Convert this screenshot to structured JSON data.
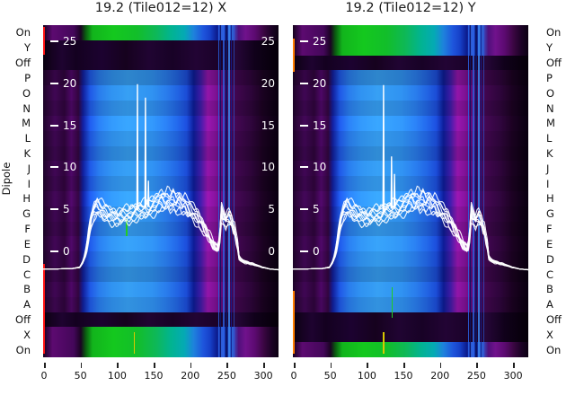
{
  "figure": {
    "kind": "dual-panel spectrogram with overlaid bandpass line plots",
    "ylabel": "Dipole"
  },
  "palette": {
    "background": "#ffffff",
    "curve": "#ffffff",
    "text": "#111111",
    "tick_text_inside": "#ffffff",
    "green_active": "#14c81e",
    "cyan": "#02b4b4",
    "blue": "#1e55dc",
    "light_blue": "#2e8ce6",
    "magenta": "#8c14a0",
    "purple": "#5c0a70",
    "dark_purple": "#2c0538",
    "near_black": "#08000e",
    "red_edge": "#ff1414",
    "orange_edge": "#ff7d00",
    "yellow_line": "#d8c800",
    "green_line": "#22cc22"
  },
  "chart_data": {
    "type": "heatmap",
    "subtype": "spectrogram rows per dipole with white bandpass curves overlay",
    "row_axis_label": "Dipole",
    "rows": [
      "On",
      "Y",
      "Off",
      "P",
      "O",
      "N",
      "M",
      "L",
      "K",
      "J",
      "I",
      "H",
      "G",
      "F",
      "E",
      "D",
      "C",
      "B",
      "A",
      "Off",
      "X",
      "On"
    ],
    "x_axis": {
      "tick_labels": [
        "0",
        "50",
        "100",
        "150",
        "200",
        "250",
        "300"
      ],
      "tick_values": [
        0,
        50,
        100,
        150,
        200,
        250,
        300
      ],
      "range": [
        0,
        322
      ]
    },
    "y_value_axis": {
      "tick_labels": [
        "25",
        "20",
        "15",
        "10",
        "5",
        "0"
      ],
      "tick_values": [
        25,
        20,
        15,
        10,
        5,
        0
      ],
      "range": [
        -12.7,
        26.9
      ]
    },
    "panels": [
      {
        "title": "19.2 (Tile012=12) X",
        "polarization": "X",
        "row_states": [
          "on",
          "off",
          "off",
          "dipole",
          "dipole",
          "dipole",
          "dipole",
          "dipole",
          "dipole",
          "dipole",
          "dipole",
          "dipole",
          "dipole",
          "dipole",
          "dipole",
          "dipole",
          "dipole",
          "dipole",
          "dipole",
          "off",
          "on",
          "on"
        ],
        "ytick_labels_right": true,
        "spikes": [
          [
            129,
            19.9
          ],
          [
            140,
            18.3
          ],
          [
            144,
            8.4
          ]
        ],
        "marks": [
          {
            "f": 114,
            "w": 1.5,
            "color_key": "green_line",
            "top": 0.585,
            "h": 0.05
          },
          {
            "f": 125,
            "w": 1.5,
            "color_key": "yellow_line",
            "top": 0.925,
            "h": 0.065
          },
          {
            "f": 1,
            "w": 2,
            "color_key": "red_edge",
            "top": 0.005,
            "h": 0.085
          },
          {
            "f": 1,
            "w": 2,
            "color_key": "red_edge",
            "top": 0.72,
            "h": 0.27
          }
        ]
      },
      {
        "title": "19.2 (Tile012=12) Y",
        "polarization": "Y",
        "row_states": [
          "on",
          "on",
          "off",
          "dipole",
          "dipole",
          "dipole",
          "dipole",
          "dipole",
          "dipole",
          "dipole",
          "dipole",
          "dipole",
          "dipole",
          "dipole",
          "dipole",
          "dipole",
          "dipole",
          "dipole",
          "dipole",
          "off",
          "off",
          "on"
        ],
        "ytick_labels_right": false,
        "spikes": [
          [
            124,
            19.8
          ],
          [
            135,
            11.3
          ],
          [
            139,
            9.2
          ]
        ],
        "marks": [
          {
            "f": 136,
            "w": 1.5,
            "color_key": "green_line",
            "top": 0.79,
            "h": 0.09
          },
          {
            "f": 124,
            "w": 1.5,
            "color_key": "yellow_line",
            "top": 0.925,
            "h": 0.065
          },
          {
            "f": 1,
            "w": 2,
            "color_key": "orange_edge",
            "top": 0.04,
            "h": 0.1
          },
          {
            "f": 1,
            "w": 2,
            "color_key": "orange_edge",
            "top": 0.8,
            "h": 0.19
          }
        ]
      }
    ],
    "shared_vertical_stripes": [
      {
        "f": 240,
        "w": 1.5,
        "color": "#2a64e8",
        "o": 0.85
      },
      {
        "f": 243,
        "w": 1.0,
        "color": "#0a1464",
        "o": 0.9
      },
      {
        "f": 247,
        "w": 2.0,
        "color": "#2a64e8",
        "o": 0.8
      },
      {
        "f": 251,
        "w": 1.5,
        "color": "#0a1464",
        "o": 0.9
      },
      {
        "f": 255,
        "w": 2.0,
        "color": "#3c88ee",
        "o": 0.85
      },
      {
        "f": 258,
        "w": 1.0,
        "color": "#141e8c",
        "o": 0.9
      },
      {
        "f": 261,
        "w": 1.5,
        "color": "#2a64e8",
        "o": 0.6
      }
    ],
    "base_curve": [
      [
        0,
        -2.1
      ],
      [
        20,
        -2.1
      ],
      [
        40,
        -2.05
      ],
      [
        50,
        -1.9
      ],
      [
        55,
        -1.2
      ],
      [
        58,
        -0.2
      ],
      [
        60,
        0.8
      ],
      [
        63,
        2.4
      ],
      [
        66,
        3.9
      ],
      [
        70,
        5.0
      ],
      [
        74,
        5.5
      ],
      [
        78,
        5.2
      ],
      [
        82,
        4.9
      ],
      [
        88,
        4.6
      ],
      [
        94,
        4.3
      ],
      [
        100,
        4.1
      ],
      [
        106,
        4.3
      ],
      [
        112,
        4.5
      ],
      [
        118,
        4.4
      ],
      [
        124,
        4.7
      ],
      [
        130,
        4.9
      ],
      [
        136,
        5.1
      ],
      [
        142,
        5.2
      ],
      [
        148,
        5.4
      ],
      [
        154,
        5.7
      ],
      [
        158,
        6.0
      ],
      [
        162,
        6.3
      ],
      [
        166,
        6.0
      ],
      [
        170,
        6.4
      ],
      [
        174,
        6.0
      ],
      [
        178,
        6.3
      ],
      [
        182,
        5.8
      ],
      [
        186,
        6.1
      ],
      [
        190,
        5.6
      ],
      [
        194,
        5.8
      ],
      [
        198,
        5.3
      ],
      [
        202,
        5.0
      ],
      [
        206,
        4.6
      ],
      [
        210,
        4.2
      ],
      [
        214,
        3.7
      ],
      [
        218,
        3.2
      ],
      [
        222,
        2.6
      ],
      [
        226,
        2.0
      ],
      [
        230,
        1.3
      ],
      [
        234,
        0.7
      ],
      [
        238,
        0.35
      ],
      [
        241,
        0.9
      ],
      [
        243,
        3.5
      ],
      [
        245,
        6.3
      ],
      [
        247,
        2.2
      ],
      [
        249,
        5.8
      ],
      [
        251,
        1.5
      ],
      [
        253,
        6.6
      ],
      [
        255,
        2.0
      ],
      [
        257,
        6.2
      ],
      [
        259,
        1.2
      ],
      [
        261,
        4.5
      ],
      [
        263,
        0.6
      ],
      [
        265,
        2.5
      ],
      [
        267,
        -0.6
      ],
      [
        270,
        -1.0
      ],
      [
        275,
        -1.2
      ],
      [
        282,
        -1.4
      ],
      [
        290,
        -1.6
      ],
      [
        300,
        -1.9
      ],
      [
        310,
        -2.1
      ],
      [
        322,
        -2.2
      ]
    ],
    "line_scales": [
      1.0,
      0.94,
      1.06,
      0.88,
      1.12,
      0.84,
      1.03,
      0.97,
      0.91,
      1.09
    ]
  }
}
